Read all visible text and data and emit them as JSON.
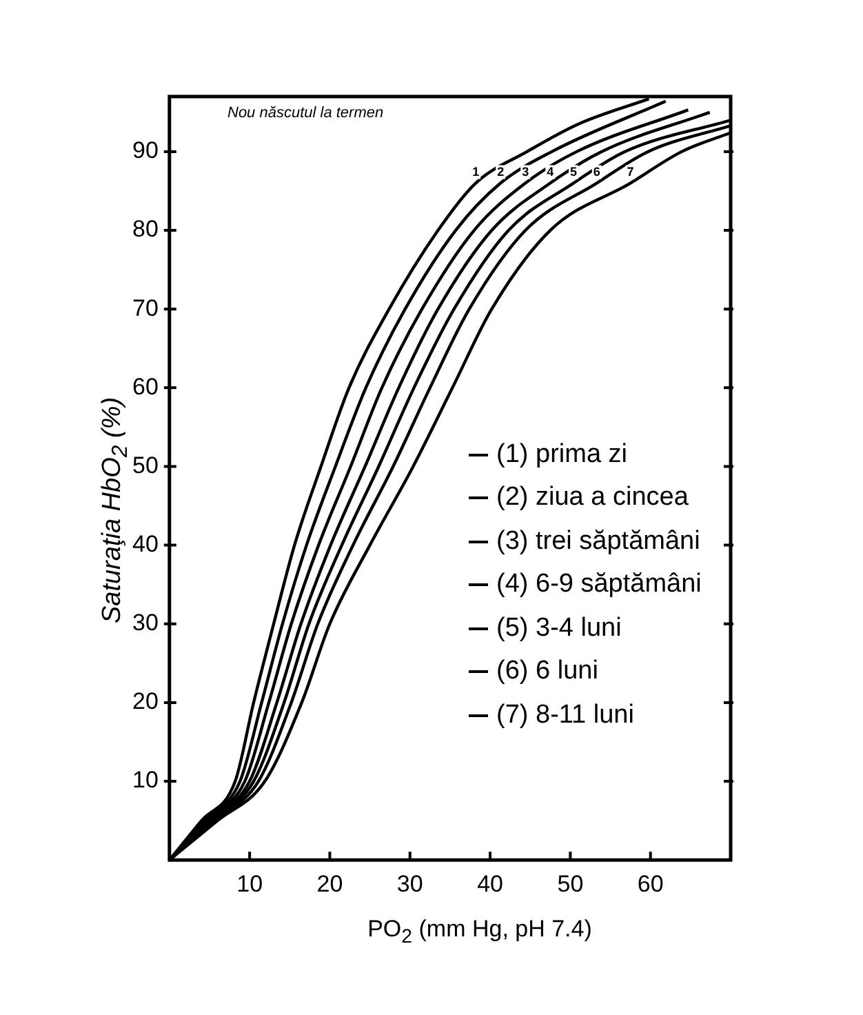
{
  "chart_data": {
    "type": "line",
    "title": "Nou născutul la termen",
    "xlabel": "PO$_{2}$ (mm Hg, pH 7.4)",
    "ylabel": "Saturaţia HbO$_{2}$ (%)",
    "xlim": [
      0,
      70
    ],
    "ylim": [
      0,
      97
    ],
    "xticks": [
      10,
      20,
      30,
      40,
      50,
      60
    ],
    "yticks": [
      10,
      20,
      30,
      40,
      50,
      60,
      70,
      80,
      90
    ],
    "grid": false,
    "legend": "right",
    "marker": "none",
    "line_style": "solid",
    "series": [
      {
        "name": "(1) prima zi",
        "color": "#000000",
        "x": [
          0,
          4,
          8.2,
          10.5,
          13,
          15.6,
          18.9,
          22.4,
          27.4,
          33.5,
          38.2,
          44.6,
          51,
          59.8
        ],
        "values": [
          0,
          5,
          10,
          20,
          30,
          40,
          50,
          60,
          70,
          80,
          86,
          90,
          93.5,
          96.7
        ]
      },
      {
        "name": "(2) ziua a cincea",
        "color": "#000000",
        "x": [
          0,
          4.3,
          8.8,
          11.5,
          14.1,
          17.1,
          20.7,
          24.5,
          29.4,
          35.7,
          41.3,
          47.7,
          61.9
        ],
        "values": [
          0,
          5,
          10,
          20,
          30,
          40,
          50,
          60,
          70,
          80,
          86,
          90,
          96.4
        ]
      },
      {
        "name": "(3) trei săptămâni",
        "color": "#000000",
        "x": [
          0,
          4.6,
          9.4,
          12.4,
          15.2,
          18.6,
          22.6,
          26.5,
          31.5,
          38,
          44.4,
          50.8,
          64.7
        ],
        "values": [
          0,
          5,
          10,
          20,
          30,
          40,
          50,
          60,
          70,
          80,
          86,
          90,
          95.3
        ]
      },
      {
        "name": "(4) 6-9 săptămâni",
        "color": "#000000",
        "x": [
          0,
          5,
          10,
          13.4,
          16.4,
          20.1,
          24.4,
          28.6,
          33.5,
          40.2,
          47.5,
          53.9,
          67.4
        ],
        "values": [
          0,
          5,
          10,
          20,
          30,
          40,
          50,
          60,
          70,
          80,
          86,
          90,
          95
        ]
      },
      {
        "name": "(5) 3-4 luni",
        "color": "#000000",
        "x": [
          0,
          5.3,
          10.5,
          14.3,
          17.4,
          21.5,
          26.1,
          30.5,
          35.5,
          42.3,
          50.4,
          56.8,
          70
        ],
        "values": [
          0,
          5,
          10,
          20,
          30,
          40,
          50,
          60,
          70,
          80,
          86,
          90,
          94
        ]
      },
      {
        "name": "(6) 6 luni",
        "color": "#000000",
        "x": [
          0,
          5.6,
          11.1,
          15.2,
          18.5,
          22.9,
          27.9,
          32.5,
          37.4,
          44.4,
          53.3,
          59.7,
          70
        ],
        "values": [
          0,
          5,
          10,
          20,
          30,
          40,
          50,
          60,
          70,
          80,
          86,
          90,
          93.3
        ]
      },
      {
        "name": "(7) 8-11 luni",
        "color": "#000000",
        "x": [
          0,
          6,
          11.9,
          16.5,
          20,
          25,
          30.4,
          35.3,
          40.2,
          47.5,
          57.5,
          63.9,
          70
        ],
        "values": [
          0,
          5,
          10,
          20,
          30,
          40,
          50,
          60,
          70,
          80,
          86,
          90,
          92.4
        ]
      }
    ],
    "annotations": [
      {
        "text": "1",
        "x": 38.2,
        "y": 86
      },
      {
        "text": "2",
        "x": 41.3,
        "y": 86
      },
      {
        "text": "3",
        "x": 44.4,
        "y": 86
      },
      {
        "text": "4",
        "x": 47.5,
        "y": 86
      },
      {
        "text": "5",
        "x": 50.4,
        "y": 86
      },
      {
        "text": "6",
        "x": 53.3,
        "y": 86
      },
      {
        "text": "7",
        "x": 57.5,
        "y": 86
      }
    ]
  }
}
